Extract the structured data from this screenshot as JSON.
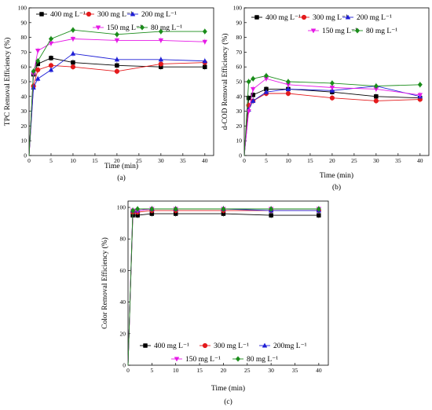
{
  "chart_data": [
    {
      "type": "line",
      "panel_label": "(a)",
      "xlabel": "Time (min)",
      "ylabel": "TPC Removal Efficiency (%)",
      "xlim": [
        0,
        42
      ],
      "ylim": [
        0,
        100
      ],
      "xticks": [
        0,
        5,
        10,
        15,
        20,
        25,
        30,
        35,
        40
      ],
      "yticks": [
        0,
        10,
        20,
        30,
        40,
        50,
        60,
        70,
        80,
        90,
        100
      ],
      "legend_position": "top",
      "x": [
        0,
        1,
        2,
        5,
        10,
        20,
        30,
        40
      ],
      "series": [
        {
          "name": "400 mg L⁻¹",
          "color": "#000000",
          "marker": "square",
          "values": [
            0,
            55,
            62,
            66,
            63,
            61,
            60,
            60
          ]
        },
        {
          "name": "300 mg L⁻¹",
          "color": "#e41a1c",
          "marker": "circle",
          "values": [
            0,
            47,
            58,
            61,
            60,
            57,
            62,
            63
          ]
        },
        {
          "name": "200 mg L⁻¹",
          "color": "#1f1fd6",
          "marker": "triangle-up",
          "values": [
            0,
            46,
            52,
            58,
            69,
            65,
            65,
            64
          ]
        },
        {
          "name": "150 mg L⁻¹",
          "color": "#e619e6",
          "marker": "triangle-down",
          "values": [
            0,
            55,
            71,
            76,
            79,
            78,
            78,
            77
          ]
        },
        {
          "name": "80 mg L⁻¹",
          "color": "#1a8c1a",
          "marker": "diamond",
          "values": [
            0,
            57,
            64,
            79,
            85,
            82,
            84,
            84
          ]
        }
      ]
    },
    {
      "type": "line",
      "panel_label": "(b)",
      "xlabel": "Time (min)",
      "ylabel": "d-COD Removal Efficiency (%)",
      "xlim": [
        0,
        42
      ],
      "ylim": [
        0,
        100
      ],
      "xticks": [
        0,
        5,
        10,
        15,
        20,
        25,
        30,
        35,
        40
      ],
      "yticks": [
        0,
        10,
        20,
        30,
        40,
        50,
        60,
        70,
        80,
        90,
        100
      ],
      "legend_position": "top",
      "x": [
        0,
        1,
        2,
        5,
        10,
        20,
        30,
        40
      ],
      "series": [
        {
          "name": "400 mg L⁻¹",
          "color": "#000000",
          "marker": "square",
          "values": [
            0,
            39,
            41,
            45,
            45,
            43,
            40,
            39
          ]
        },
        {
          "name": "300 mg L⁻¹",
          "color": "#e41a1c",
          "marker": "circle",
          "values": [
            0,
            34,
            37,
            42,
            42,
            39,
            37,
            38
          ]
        },
        {
          "name": "200 mg L⁻¹",
          "color": "#1f1fd6",
          "marker": "triangle-up",
          "values": [
            0,
            31,
            37,
            43,
            45,
            44,
            47,
            40
          ]
        },
        {
          "name": "150 mg L⁻¹",
          "color": "#e619e6",
          "marker": "triangle-down",
          "values": [
            0,
            30,
            45,
            52,
            48,
            46,
            45,
            41
          ]
        },
        {
          "name": "80 mg L⁻¹",
          "color": "#1a8c1a",
          "marker": "diamond",
          "values": [
            0,
            50,
            52,
            54,
            50,
            49,
            47,
            48
          ]
        }
      ]
    },
    {
      "type": "line",
      "panel_label": "(c)",
      "xlabel": "Time (min)",
      "ylabel": "Color Removal Efficiency (%)",
      "xlim": [
        0,
        42
      ],
      "ylim": [
        0,
        104
      ],
      "xticks": [
        0,
        5,
        10,
        15,
        20,
        25,
        30,
        35,
        40
      ],
      "yticks": [
        0,
        20,
        40,
        60,
        80,
        100
      ],
      "legend_position": "middle",
      "x": [
        0,
        1,
        2,
        5,
        10,
        20,
        30,
        40
      ],
      "series": [
        {
          "name": "400 mg L⁻¹",
          "color": "#000000",
          "marker": "square",
          "values": [
            0,
            95,
            95,
            96,
            96,
            96,
            95,
            95
          ]
        },
        {
          "name": "300 mg L⁻¹",
          "color": "#e41a1c",
          "marker": "circle",
          "values": [
            0,
            97,
            97,
            98,
            98,
            98,
            98,
            98
          ]
        },
        {
          "name": "200mg L⁻¹",
          "color": "#1f1fd6",
          "marker": "triangle-up",
          "values": [
            0,
            98,
            98,
            99,
            99,
            99,
            98,
            98
          ]
        },
        {
          "name": "150 mg L⁻¹",
          "color": "#e619e6",
          "marker": "triangle-down",
          "values": [
            0,
            98,
            98,
            99,
            99,
            99,
            99,
            99
          ]
        },
        {
          "name": "80 mg L⁻¹",
          "color": "#1a8c1a",
          "marker": "diamond",
          "values": [
            0,
            98,
            99,
            99,
            99,
            99,
            99,
            99
          ]
        }
      ]
    }
  ]
}
